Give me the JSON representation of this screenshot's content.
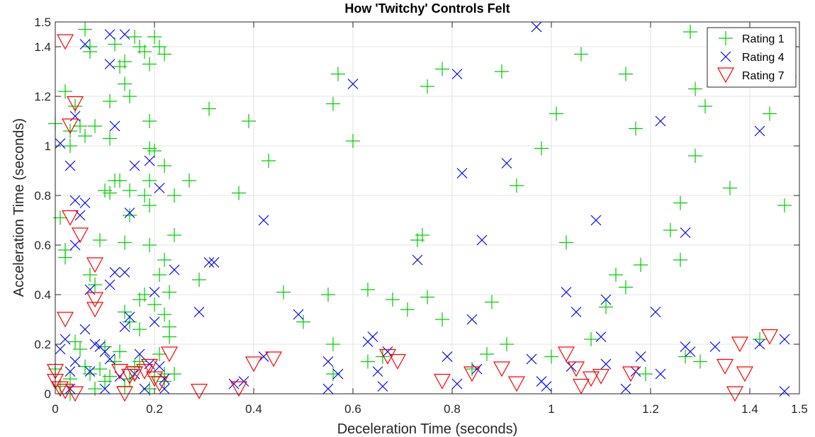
{
  "chart_data": {
    "type": "scatter",
    "title": "How 'Twitchy' Controls Felt",
    "xlabel": "Deceleration Time (seconds)",
    "ylabel": "Acceleration Time (seconds)",
    "xlim": [
      0,
      1.5
    ],
    "ylim": [
      0,
      1.5
    ],
    "xticks": [
      0,
      0.2,
      0.4,
      0.6,
      0.8,
      1,
      1.2,
      1.4,
      1.5
    ],
    "xtick_labels": [
      "0",
      "0.2",
      "0.4",
      "0.6",
      "0.8",
      "1",
      "1.2",
      "1.4",
      "1.5"
    ],
    "yticks": [
      0,
      0.2,
      0.4,
      0.6,
      0.8,
      1,
      1.2,
      1.4,
      1.5
    ],
    "ytick_labels": [
      "0",
      "0.2",
      "0.4",
      "0.6",
      "0.8",
      "1",
      "1.2",
      "1.4",
      "1.5"
    ],
    "grid": true,
    "legend_position": "top-right",
    "series": [
      {
        "name": "Rating 1",
        "marker": "plus",
        "color": "#00cc00",
        "points": [
          [
            0.0,
            1.09
          ],
          [
            0.01,
            0.71
          ],
          [
            0.02,
            1.22
          ],
          [
            0.02,
            0.58
          ],
          [
            0.03,
            1.06
          ],
          [
            0.03,
            1.0
          ],
          [
            0.04,
            1.16
          ],
          [
            0.05,
            1.08
          ],
          [
            0.06,
            1.47
          ],
          [
            0.06,
            1.04
          ],
          [
            0.07,
            1.38
          ],
          [
            0.07,
            1.4
          ],
          [
            0.08,
            1.08
          ],
          [
            0.09,
            0.62
          ],
          [
            0.11,
            1.18
          ],
          [
            0.11,
            1.03
          ],
          [
            0.12,
            1.41
          ],
          [
            0.12,
            0.86
          ],
          [
            0.11,
            0.81
          ],
          [
            0.14,
            1.25
          ],
          [
            0.14,
            1.34
          ],
          [
            0.15,
            1.2
          ],
          [
            0.15,
            0.82
          ],
          [
            0.15,
            0.72
          ],
          [
            0.13,
            1.32
          ],
          [
            0.16,
            1.44
          ],
          [
            0.17,
            1.4
          ],
          [
            0.18,
            1.38
          ],
          [
            0.19,
            1.33
          ],
          [
            0.19,
            1.1
          ],
          [
            0.19,
            0.99
          ],
          [
            0.2,
            0.98
          ],
          [
            0.2,
            1.44
          ],
          [
            0.21,
            1.4
          ],
          [
            0.22,
            1.37
          ],
          [
            0.22,
            0.92
          ],
          [
            0.19,
            0.86
          ],
          [
            0.18,
            0.8
          ],
          [
            0.19,
            0.76
          ],
          [
            0.14,
            0.61
          ],
          [
            0.19,
            0.6
          ],
          [
            0.24,
            0.8
          ],
          [
            0.24,
            0.64
          ],
          [
            0.22,
            0.54
          ],
          [
            0.21,
            0.48
          ],
          [
            0.23,
            0.41
          ],
          [
            0.18,
            0.4
          ],
          [
            0.17,
            0.38
          ],
          [
            0.14,
            0.33
          ],
          [
            0.15,
            0.29
          ],
          [
            0.17,
            0.26
          ],
          [
            0.2,
            0.36
          ],
          [
            0.22,
            0.32
          ],
          [
            0.23,
            0.27
          ],
          [
            0.23,
            0.23
          ],
          [
            0.24,
            0.08
          ],
          [
            0.22,
            0.05
          ],
          [
            0.0,
            0.1
          ],
          [
            0.01,
            0.03
          ],
          [
            0.02,
            0.55
          ],
          [
            0.03,
            0.06
          ],
          [
            0.03,
            0.0
          ],
          [
            0.04,
            0.21
          ],
          [
            0.05,
            0.18
          ],
          [
            0.06,
            0.11
          ],
          [
            0.07,
            0.08
          ],
          [
            0.08,
            0.02
          ],
          [
            0.09,
            0.1
          ],
          [
            0.1,
            0.19
          ],
          [
            0.1,
            0.05
          ],
          [
            0.11,
            0.07
          ],
          [
            0.12,
            0.13
          ],
          [
            0.13,
            0.17
          ],
          [
            0.14,
            0.03
          ],
          [
            0.15,
            0.06
          ],
          [
            0.16,
            0.11
          ],
          [
            0.17,
            0.13
          ],
          [
            0.19,
            0.02
          ],
          [
            0.2,
            0.07
          ],
          [
            0.21,
            0.16
          ],
          [
            0.22,
            0.08
          ],
          [
            0.07,
            0.48
          ],
          [
            0.08,
            0.44
          ],
          [
            0.1,
            0.82
          ],
          [
            0.13,
            0.86
          ],
          [
            0.27,
            0.86
          ],
          [
            0.29,
            0.46
          ],
          [
            0.31,
            1.15
          ],
          [
            0.37,
            0.81
          ],
          [
            0.39,
            1.1
          ],
          [
            0.43,
            0.94
          ],
          [
            0.46,
            0.41
          ],
          [
            0.5,
            0.29
          ],
          [
            0.55,
            0.4
          ],
          [
            0.56,
            1.17
          ],
          [
            0.57,
            1.29
          ],
          [
            0.56,
            0.2
          ],
          [
            0.6,
            1.02
          ],
          [
            0.63,
            0.42
          ],
          [
            0.66,
            0.15
          ],
          [
            0.68,
            0.38
          ],
          [
            0.71,
            0.34
          ],
          [
            0.73,
            0.62
          ],
          [
            0.74,
            0.64
          ],
          [
            0.75,
            0.39
          ],
          [
            0.75,
            1.24
          ],
          [
            0.78,
            1.31
          ],
          [
            0.78,
            0.3
          ],
          [
            0.88,
            0.37
          ],
          [
            0.9,
            1.3
          ],
          [
            0.91,
            0.2
          ],
          [
            0.93,
            0.84
          ],
          [
            0.98,
            0.99
          ],
          [
            1.01,
            1.13
          ],
          [
            1.03,
            0.61
          ],
          [
            1.06,
            1.37
          ],
          [
            1.08,
            0.22
          ],
          [
            1.11,
            0.35
          ],
          [
            1.13,
            0.48
          ],
          [
            1.15,
            0.43
          ],
          [
            1.15,
            1.29
          ],
          [
            1.17,
            1.07
          ],
          [
            1.18,
            0.52
          ],
          [
            1.19,
            0.08
          ],
          [
            1.24,
            0.66
          ],
          [
            1.26,
            0.54
          ],
          [
            1.26,
            0.77
          ],
          [
            1.28,
            1.46
          ],
          [
            1.29,
            0.96
          ],
          [
            1.29,
            1.23
          ],
          [
            1.31,
            1.16
          ],
          [
            1.36,
            0.83
          ],
          [
            1.44,
            1.13
          ],
          [
            1.47,
            0.76
          ],
          [
            1.48,
            1.28
          ],
          [
            0.56,
            0.08
          ],
          [
            0.63,
            0.13
          ],
          [
            0.84,
            0.1
          ],
          [
            0.87,
            0.16
          ],
          [
            1.0,
            0.15
          ],
          [
            1.27,
            0.15
          ],
          [
            1.3,
            0.13
          ],
          [
            1.42,
            0.22
          ]
        ]
      },
      {
        "name": "Rating 4",
        "marker": "x",
        "color": "#0000ff",
        "points": [
          [
            0.01,
            1.01
          ],
          [
            0.03,
            0.92
          ],
          [
            0.04,
            1.12
          ],
          [
            0.04,
            0.78
          ],
          [
            0.04,
            0.6
          ],
          [
            0.05,
            0.72
          ],
          [
            0.06,
            0.77
          ],
          [
            0.06,
            1.41
          ],
          [
            0.07,
            0.42
          ],
          [
            0.11,
            1.45
          ],
          [
            0.11,
            1.33
          ],
          [
            0.12,
            1.08
          ],
          [
            0.14,
            1.45
          ],
          [
            0.16,
            0.92
          ],
          [
            0.15,
            0.73
          ],
          [
            0.19,
            0.94
          ],
          [
            0.21,
            0.83
          ],
          [
            0.11,
            0.44
          ],
          [
            0.12,
            0.49
          ],
          [
            0.14,
            0.49
          ],
          [
            0.2,
            0.41
          ],
          [
            0.24,
            0.5
          ],
          [
            0.15,
            0.31
          ],
          [
            0.14,
            0.27
          ],
          [
            0.01,
            0.18
          ],
          [
            0.02,
            0.22
          ],
          [
            0.03,
            0.09
          ],
          [
            0.03,
            0.02
          ],
          [
            0.04,
            0.13
          ],
          [
            0.06,
            0.26
          ],
          [
            0.07,
            0.09
          ],
          [
            0.08,
            0.2
          ],
          [
            0.09,
            0.19
          ],
          [
            0.1,
            0.17
          ],
          [
            0.11,
            0.14
          ],
          [
            0.1,
            0.02
          ],
          [
            0.13,
            0.07
          ],
          [
            0.16,
            0.08
          ],
          [
            0.17,
            0.16
          ],
          [
            0.19,
            0.12
          ],
          [
            0.2,
            0.29
          ],
          [
            0.21,
            0.11
          ],
          [
            0.22,
            0.06
          ],
          [
            0.22,
            0.02
          ],
          [
            0.18,
            0.02
          ],
          [
            0.29,
            0.33
          ],
          [
            0.31,
            0.53
          ],
          [
            0.32,
            0.53
          ],
          [
            0.36,
            0.04
          ],
          [
            0.38,
            0.05
          ],
          [
            0.42,
            0.7
          ],
          [
            0.42,
            0.15
          ],
          [
            0.49,
            0.32
          ],
          [
            0.55,
            0.02
          ],
          [
            0.55,
            0.13
          ],
          [
            0.57,
            0.08
          ],
          [
            0.6,
            1.25
          ],
          [
            0.63,
            0.21
          ],
          [
            0.64,
            0.23
          ],
          [
            0.65,
            0.09
          ],
          [
            0.66,
            0.03
          ],
          [
            0.67,
            0.17
          ],
          [
            0.73,
            0.54
          ],
          [
            0.79,
            0.15
          ],
          [
            0.81,
            1.29
          ],
          [
            0.81,
            0.04
          ],
          [
            0.82,
            0.89
          ],
          [
            0.84,
            0.3
          ],
          [
            0.85,
            0.1
          ],
          [
            0.86,
            0.62
          ],
          [
            0.91,
            0.93
          ],
          [
            0.96,
            0.14
          ],
          [
            0.97,
            1.48
          ],
          [
            0.98,
            0.05
          ],
          [
            0.99,
            0.03
          ],
          [
            1.03,
            0.41
          ],
          [
            1.04,
            0.11
          ],
          [
            1.05,
            0.33
          ],
          [
            1.09,
            0.7
          ],
          [
            1.1,
            0.23
          ],
          [
            1.11,
            0.12
          ],
          [
            1.11,
            0.38
          ],
          [
            1.15,
            0.02
          ],
          [
            1.17,
            0.09
          ],
          [
            1.18,
            0.15
          ],
          [
            1.21,
            0.33
          ],
          [
            1.22,
            1.1
          ],
          [
            1.22,
            0.08
          ],
          [
            1.27,
            0.65
          ],
          [
            1.27,
            0.19
          ],
          [
            1.28,
            0.17
          ],
          [
            1.33,
            0.19
          ],
          [
            1.42,
            1.06
          ],
          [
            1.42,
            0.2
          ],
          [
            1.47,
            0.22
          ],
          [
            1.47,
            0.01
          ]
        ]
      },
      {
        "name": "Rating 7",
        "marker": "triangle-down",
        "color": "#ff0000",
        "points": [
          [
            0.02,
            1.42
          ],
          [
            0.04,
            1.17
          ],
          [
            0.03,
            1.08
          ],
          [
            0.03,
            0.71
          ],
          [
            0.05,
            0.64
          ],
          [
            0.08,
            0.52
          ],
          [
            0.08,
            0.38
          ],
          [
            0.08,
            0.34
          ],
          [
            0.02,
            0.3
          ],
          [
            0.0,
            0.09
          ],
          [
            0.0,
            0.05
          ],
          [
            0.01,
            0.02
          ],
          [
            0.02,
            0.01
          ],
          [
            0.04,
            0.0
          ],
          [
            0.13,
            0.09
          ],
          [
            0.15,
            0.07
          ],
          [
            0.16,
            0.08
          ],
          [
            0.14,
            0.0
          ],
          [
            0.18,
            0.09
          ],
          [
            0.19,
            0.11
          ],
          [
            0.2,
            0.06
          ],
          [
            0.21,
            0.04
          ],
          [
            0.23,
            0.16
          ],
          [
            0.29,
            0.01
          ],
          [
            0.37,
            0.02
          ],
          [
            0.4,
            0.12
          ],
          [
            0.44,
            0.14
          ],
          [
            0.67,
            0.15
          ],
          [
            0.69,
            0.13
          ],
          [
            0.78,
            0.05
          ],
          [
            0.84,
            0.08
          ],
          [
            0.9,
            0.1
          ],
          [
            0.93,
            0.04
          ],
          [
            1.03,
            0.16
          ],
          [
            1.05,
            0.1
          ],
          [
            1.06,
            0.03
          ],
          [
            1.08,
            0.06
          ],
          [
            1.1,
            0.07
          ],
          [
            1.16,
            0.08
          ],
          [
            1.35,
            0.11
          ],
          [
            1.37,
            0.0
          ],
          [
            1.38,
            0.2
          ],
          [
            1.39,
            0.08
          ],
          [
            1.44,
            0.23
          ]
        ]
      }
    ]
  }
}
